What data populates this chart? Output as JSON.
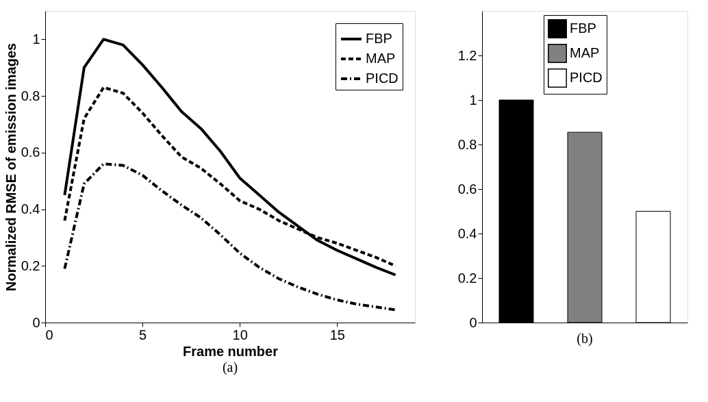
{
  "chart_data": [
    {
      "type": "line",
      "xlabel": "Frame number",
      "ylabel": "Normalized RMSE of emission images",
      "x": [
        1,
        2,
        3,
        4,
        5,
        6,
        7,
        8,
        9,
        10,
        11,
        12,
        13,
        14,
        15,
        16,
        17,
        18
      ],
      "xlim": [
        0,
        19
      ],
      "xticks": [
        0,
        5,
        10,
        15
      ],
      "ylim": [
        0,
        1.1
      ],
      "yticks": [
        0,
        0.2,
        0.4,
        0.6,
        0.8,
        1
      ],
      "grid": false,
      "legend": "top right",
      "annotations": [
        "(a)"
      ],
      "series": [
        {
          "name": "FBP",
          "color": "#000000",
          "line_style": "solid",
          "values": [
            0.45,
            0.9,
            1.0,
            0.98,
            0.91,
            0.83,
            0.745,
            0.685,
            0.605,
            0.51,
            0.45,
            0.39,
            0.34,
            0.29,
            0.255,
            0.225,
            0.195,
            0.168
          ]
        },
        {
          "name": "MAP",
          "color": "#000000",
          "line_style": "dashed",
          "values": [
            0.36,
            0.72,
            0.83,
            0.81,
            0.74,
            0.66,
            0.585,
            0.545,
            0.49,
            0.43,
            0.4,
            0.36,
            0.33,
            0.3,
            0.28,
            0.255,
            0.23,
            0.2
          ]
        },
        {
          "name": "PICD",
          "color": "#000000",
          "line_style": "dashdot",
          "values": [
            0.19,
            0.49,
            0.56,
            0.555,
            0.52,
            0.465,
            0.415,
            0.37,
            0.31,
            0.245,
            0.195,
            0.155,
            0.125,
            0.1,
            0.08,
            0.065,
            0.055,
            0.045
          ]
        }
      ]
    },
    {
      "type": "bar",
      "stacked": true,
      "categories": [
        null,
        null,
        null
      ],
      "ylim": [
        0,
        1.4
      ],
      "yticks": [
        0,
        0.2,
        0.4,
        0.6,
        0.8,
        1,
        1.2
      ],
      "grid": false,
      "legend": "top",
      "tick_labels": "y",
      "annotations": [
        "(b)"
      ],
      "series": [
        {
          "name": "FBP",
          "color": "#000000",
          "values": [
            1.0,
            null,
            null
          ]
        },
        {
          "name": "MAP",
          "color": "#808080",
          "values": [
            null,
            0.855,
            null
          ]
        },
        {
          "name": "PICD",
          "color": "#ffffff",
          "values": [
            null,
            null,
            0.5
          ]
        }
      ]
    }
  ]
}
